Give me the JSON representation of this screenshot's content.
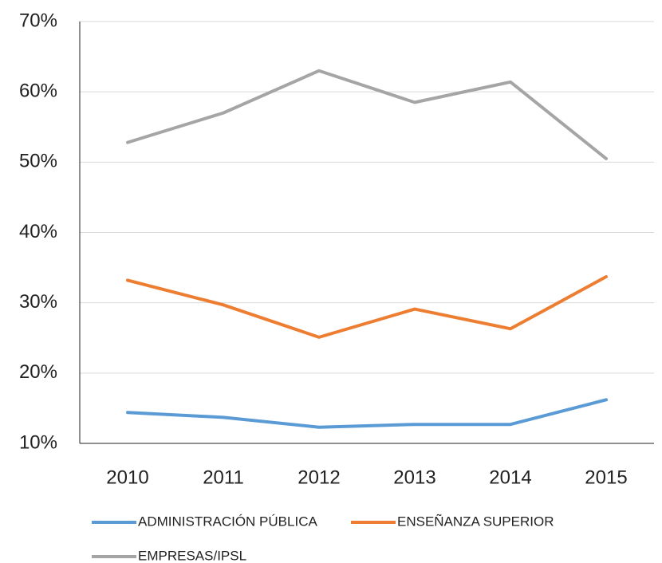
{
  "chart_data": {
    "type": "line",
    "categories": [
      "2010",
      "2011",
      "2012",
      "2013",
      "2014",
      "2015"
    ],
    "series": [
      {
        "name": "ADMINISTRACIÓN PÚBLICA",
        "color": "#5b9bd5",
        "values": [
          14.4,
          13.7,
          12.3,
          12.7,
          12.7,
          16.2
        ]
      },
      {
        "name": "ENSEÑANZA SUPERIOR",
        "color": "#ed7d31",
        "values": [
          33.2,
          29.7,
          25.1,
          29.1,
          26.3,
          33.7
        ]
      },
      {
        "name": "EMPRESAS/IPSL",
        "color": "#a5a5a5",
        "values": [
          52.8,
          57.0,
          63.0,
          58.5,
          61.4,
          50.5
        ]
      }
    ],
    "ylim": [
      10,
      70
    ],
    "yticks": [
      {
        "value": 10,
        "label": "10%"
      },
      {
        "value": 20,
        "label": "20%"
      },
      {
        "value": 30,
        "label": "30%"
      },
      {
        "value": 40,
        "label": "40%"
      },
      {
        "value": 50,
        "label": "50%"
      },
      {
        "value": 60,
        "label": "60%"
      },
      {
        "value": 70,
        "label": "70%"
      }
    ],
    "grid": true
  }
}
